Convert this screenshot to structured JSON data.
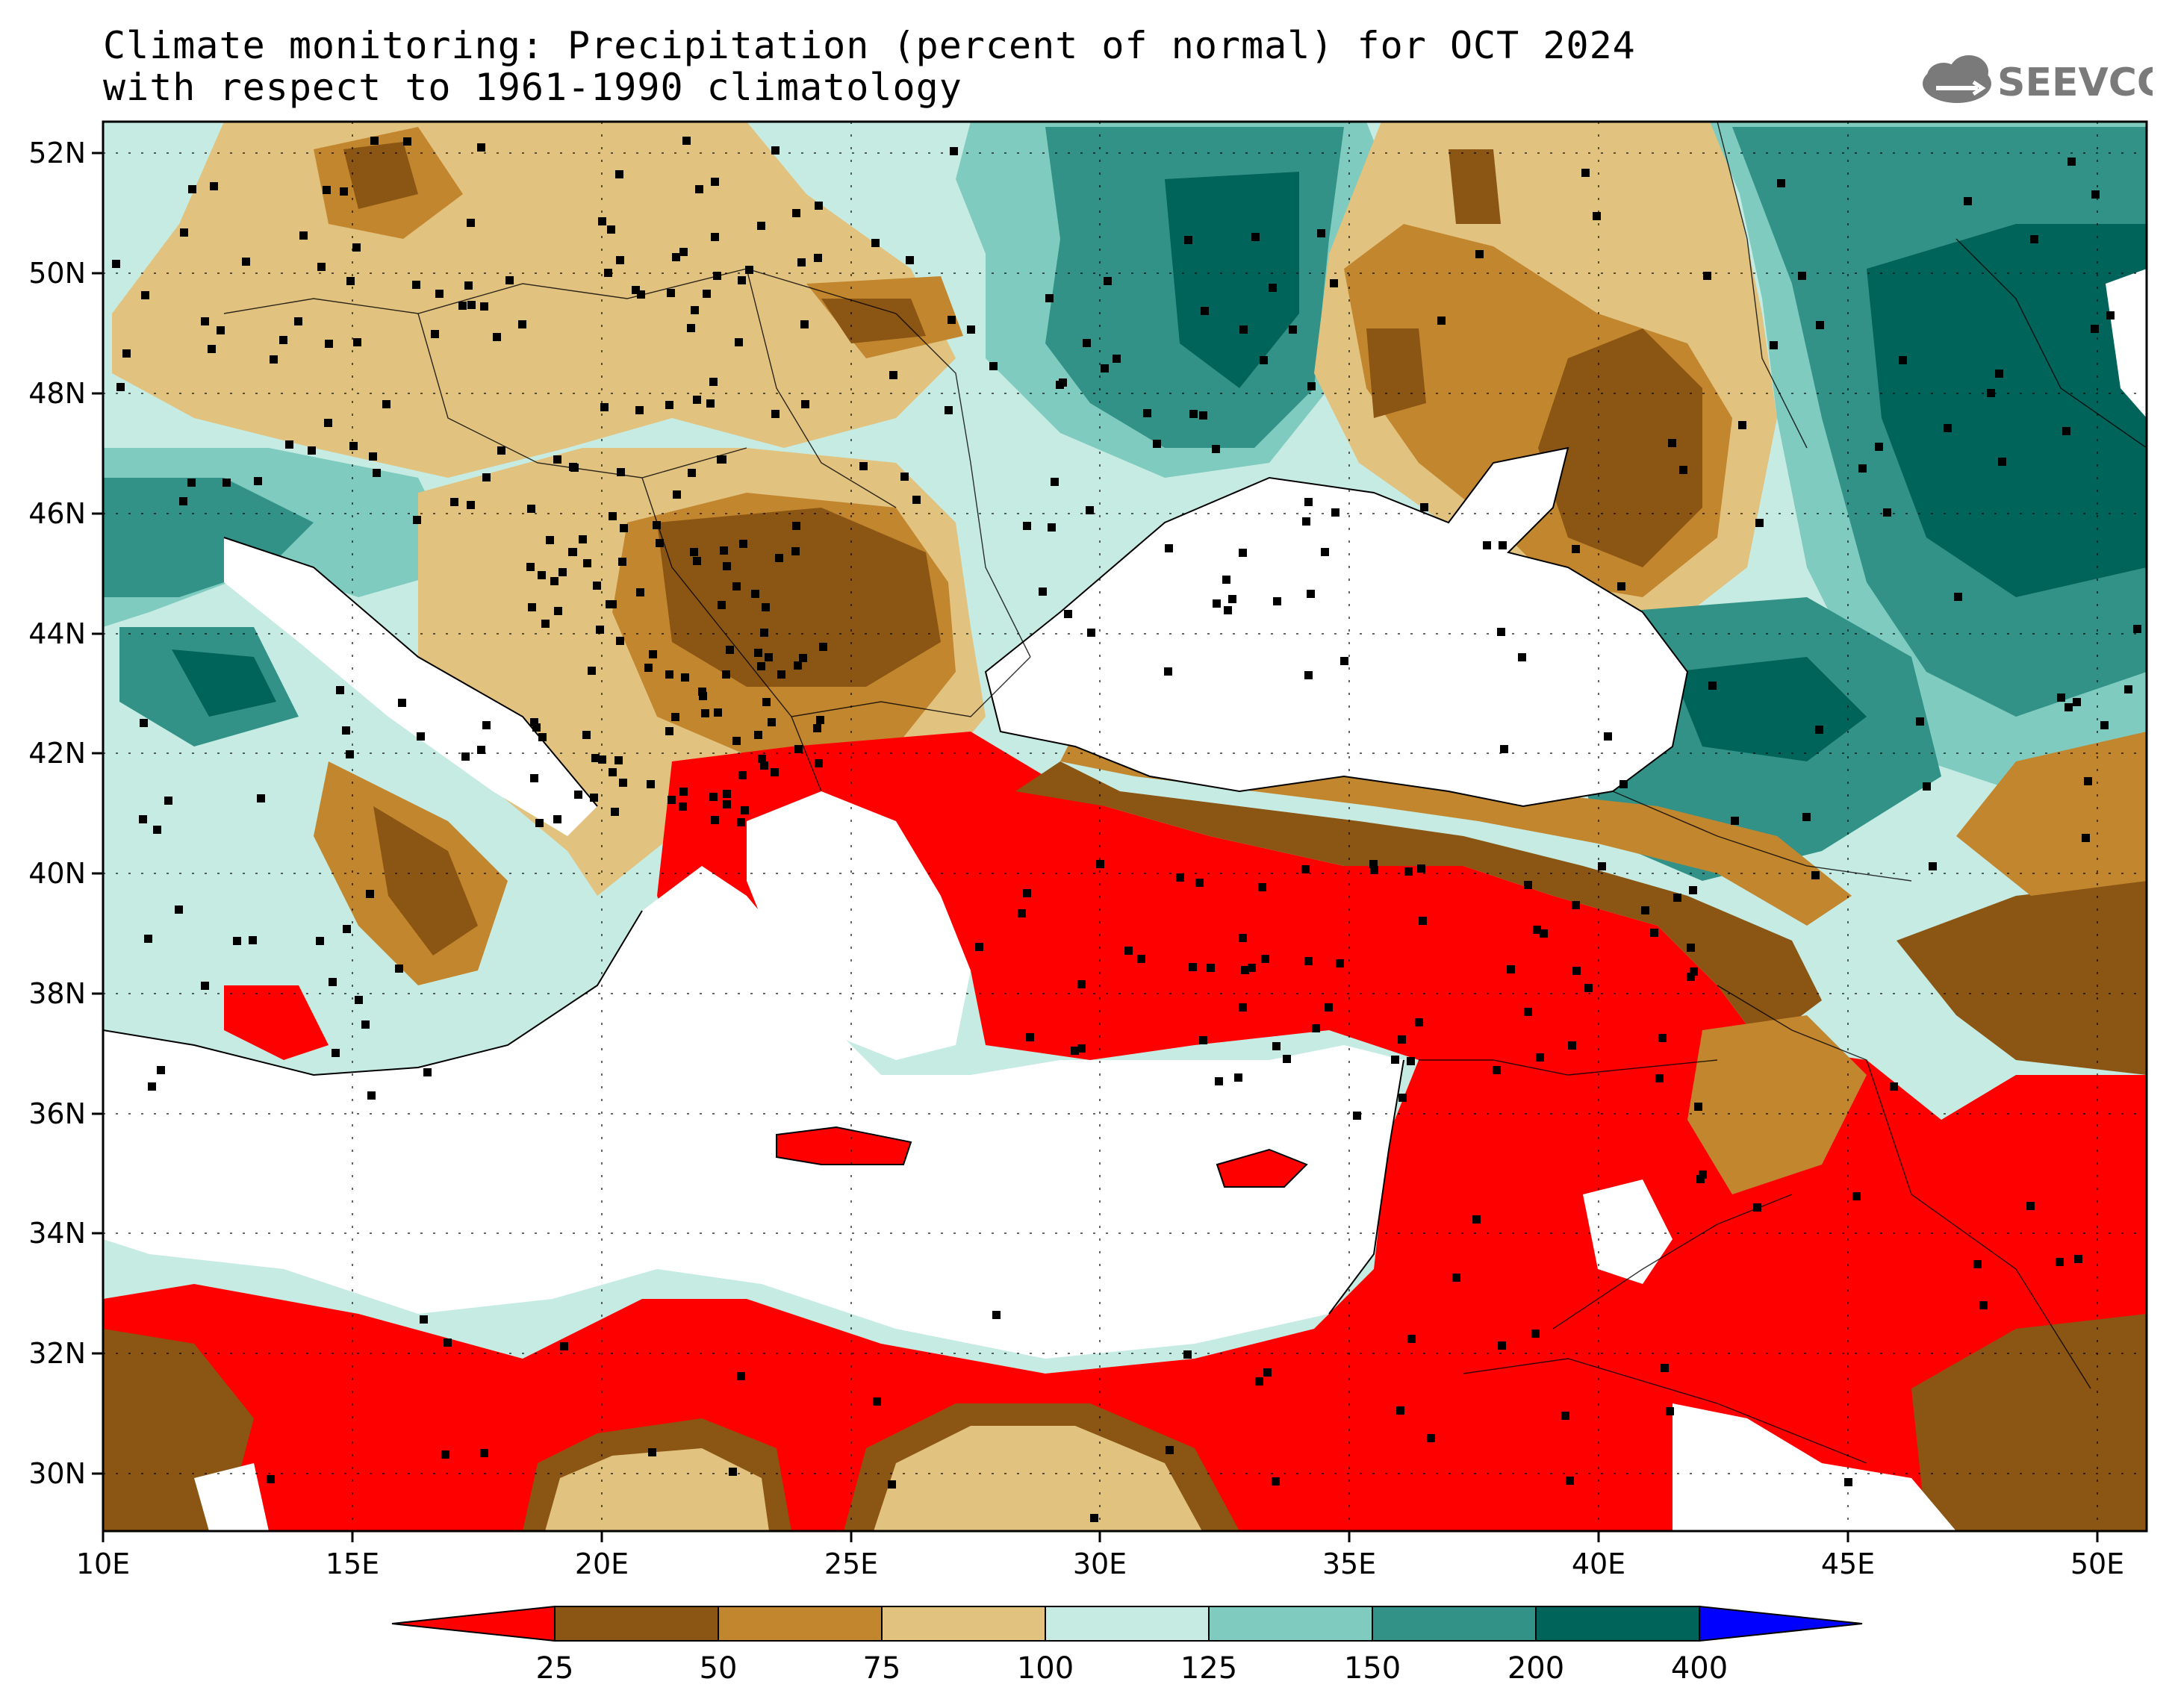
{
  "header": {
    "title_line1": "Climate monitoring: Precipitation (percent of normal) for OCT 2024",
    "title_line2": "with respect to 1961-1990 climatology",
    "logo_text": "SEEVCCC"
  },
  "map": {
    "lon_ticks": [
      "10E",
      "15E",
      "20E",
      "25E",
      "30E",
      "35E",
      "40E",
      "45E",
      "50E"
    ],
    "lat_ticks": [
      "52N",
      "50N",
      "48N",
      "46N",
      "44N",
      "42N",
      "40N",
      "38N",
      "36N",
      "34N",
      "32N",
      "30N"
    ],
    "lon_range": [
      10,
      51
    ],
    "lat_range": [
      29,
      52.5
    ]
  },
  "colorbar": {
    "labels": [
      "25",
      "50",
      "75",
      "100",
      "125",
      "150",
      "200",
      "400"
    ],
    "colors": [
      "#ff0000",
      "#8b5513",
      "#c2862e",
      "#e2c27f",
      "#c6ebe2",
      "#7fcbbf",
      "#329288",
      "#00645a",
      "#0000ff"
    ]
  }
}
